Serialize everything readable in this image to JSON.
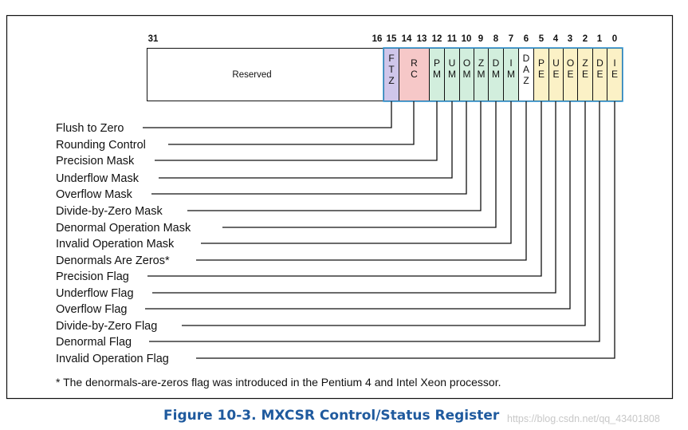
{
  "bit_numbers": [
    "31",
    "16",
    "15",
    "14",
    "13",
    "12",
    "11",
    "10",
    "9",
    "8",
    "7",
    "6",
    "5",
    "4",
    "3",
    "2",
    "1",
    "0"
  ],
  "reserved_label": "Reserved",
  "fields": [
    {
      "id": "ftz",
      "lines": [
        "F",
        "T",
        "Z"
      ],
      "color": "#cfc6ea"
    },
    {
      "id": "rc",
      "lines": [
        "R",
        "C"
      ],
      "color": "#f6c8c8"
    },
    {
      "id": "pm",
      "lines": [
        "P",
        "M"
      ],
      "color": "#d2eedd"
    },
    {
      "id": "um",
      "lines": [
        "U",
        "M"
      ],
      "color": "#d2eedd"
    },
    {
      "id": "om",
      "lines": [
        "O",
        "M"
      ],
      "color": "#d2eedd"
    },
    {
      "id": "zm",
      "lines": [
        "Z",
        "M"
      ],
      "color": "#d2eedd"
    },
    {
      "id": "dm",
      "lines": [
        "D",
        "M"
      ],
      "color": "#d2eedd"
    },
    {
      "id": "im",
      "lines": [
        "I",
        "M"
      ],
      "color": "#d2eedd"
    },
    {
      "id": "daz",
      "lines": [
        "D",
        "A",
        "Z"
      ],
      "color": "#ffffff"
    },
    {
      "id": "pe",
      "lines": [
        "P",
        "E"
      ],
      "color": "#fbf1c6"
    },
    {
      "id": "ue",
      "lines": [
        "U",
        "E"
      ],
      "color": "#fbf1c6"
    },
    {
      "id": "oe",
      "lines": [
        "O",
        "E"
      ],
      "color": "#fbf1c6"
    },
    {
      "id": "ze",
      "lines": [
        "Z",
        "E"
      ],
      "color": "#fbf1c6"
    },
    {
      "id": "de",
      "lines": [
        "D",
        "E"
      ],
      "color": "#fbf1c6"
    },
    {
      "id": "ie",
      "lines": [
        "I",
        "E"
      ],
      "color": "#fbf1c6"
    }
  ],
  "flag_labels": [
    "Flush to Zero",
    "Rounding Control",
    "Precision Mask",
    "Underflow Mask",
    "Overflow Mask",
    "Divide-by-Zero Mask",
    "Denormal Operation Mask",
    "Invalid Operation Mask",
    "Denormals Are Zeros*",
    "Precision Flag",
    "Underflow Flag",
    "Overflow Flag",
    "Divide-by-Zero Flag",
    "Denormal Flag",
    "Invalid Operation Flag"
  ],
  "footnote": "* The denormals-are-zeros flag was introduced in the Pentium 4 and Intel Xeon processor.",
  "caption": "Figure 10-3.  MXCSR Control/Status Register",
  "watermark": "https://blog.csdn.net/qq_43401808",
  "colors": {
    "ftz": "#cfc6ea",
    "rc": "#f6c8c8",
    "mask": "#d2eedd",
    "flag": "#fbf1c6",
    "register_border": "#3a9ad6",
    "caption": "#1f5a9e"
  }
}
